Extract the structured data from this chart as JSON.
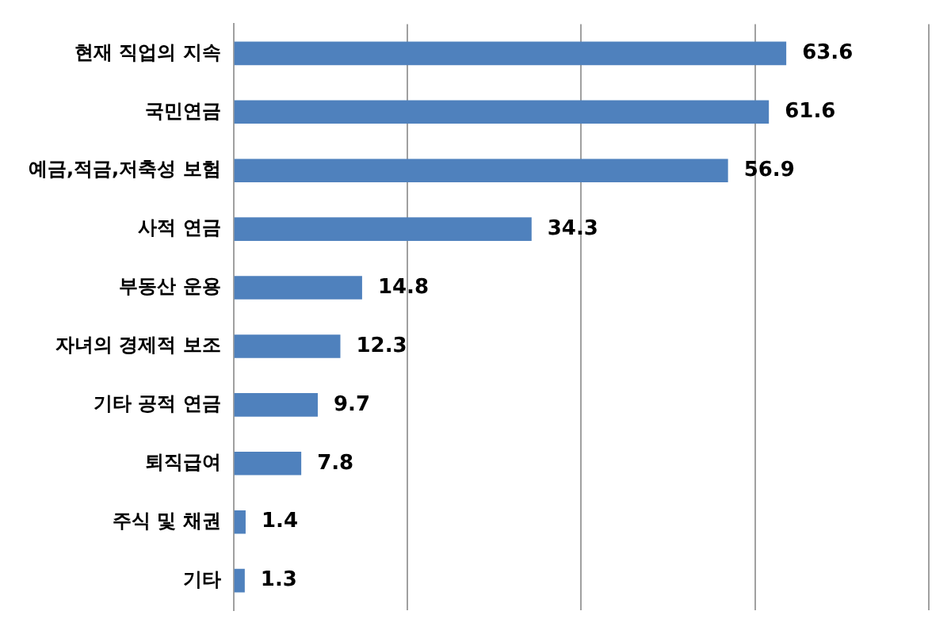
{
  "chart_data": {
    "type": "bar",
    "orientation": "horizontal",
    "categories": [
      "현재 직업의 지속",
      "국민연금",
      "예금,적금,저축성 보험",
      "사적 연금",
      "부동산 운용",
      "자녀의 경제적 보조",
      "기타 공적 연금",
      "퇴직급여",
      "주식 및 채권",
      "기타"
    ],
    "values": [
      63.6,
      61.6,
      56.9,
      34.3,
      14.8,
      12.3,
      9.7,
      7.8,
      1.4,
      1.3
    ],
    "color": "#4f81bd",
    "xlim": [
      0,
      80
    ],
    "xticks": [
      {
        "value": 0,
        "label": null
      },
      {
        "value": 20,
        "label": null
      },
      {
        "value": 40,
        "label": null
      },
      {
        "value": 60,
        "label": null
      },
      {
        "value": 80,
        "label": null
      }
    ],
    "grid": "x",
    "tick_labels": "y",
    "data_labels": true,
    "legend": false
  }
}
